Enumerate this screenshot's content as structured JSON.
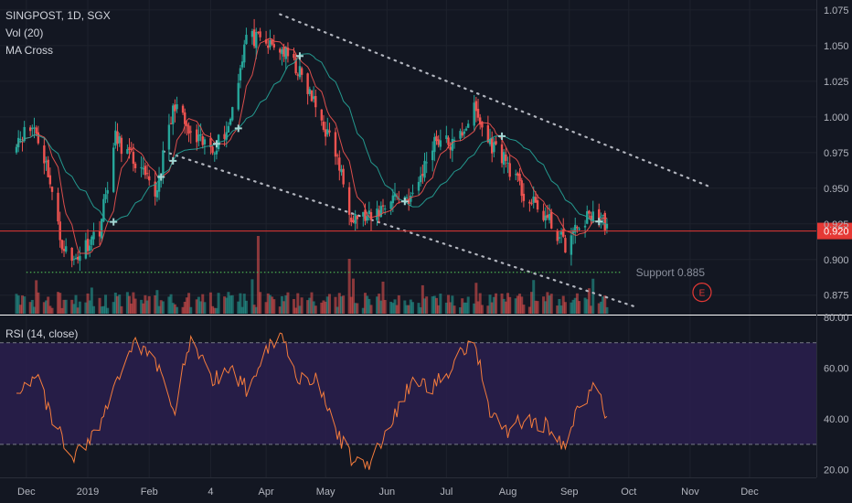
{
  "header": {
    "symbol_line": "SINGPOST, 1D, SGX",
    "indicator_vol": "Vol (20)",
    "indicator_ma": "MA Cross"
  },
  "rsi_panel": {
    "title": "RSI (14, close)"
  },
  "colors": {
    "background": "#131722",
    "grid": "#1e222d",
    "up": "#26a69a",
    "down": "#ef5350",
    "ma_fast": "#ef5350",
    "ma_slow": "#26a69a",
    "trendline": "#b2b5be",
    "support": "#4caf50",
    "price_line": "#e53935",
    "rsi_line": "#f57c3c",
    "rsi_band": "#2a1f4e",
    "earnings": "#e53935"
  },
  "icons": {
    "earnings_marker": "earnings-circle-icon"
  },
  "annotations": {
    "current_price": "0.920",
    "support_label": "Support 0.885",
    "earnings_marker_label": "E"
  },
  "chart_data": [
    {
      "type": "candlestick",
      "title": "SINGPOST, 1D, SGX",
      "y_axis": {
        "ticks": [
          "0.875",
          "0.900",
          "0.925",
          "0.950",
          "0.975",
          "1.000",
          "1.025",
          "1.050",
          "1.075"
        ],
        "range": [
          0.862,
          1.082
        ]
      },
      "x_axis": {
        "ticks": [
          "Dec",
          "2019",
          "Feb",
          "4",
          "Apr",
          "May",
          "Jun",
          "Jul",
          "Aug",
          "Sep",
          "Oct",
          "Nov",
          "Dec"
        ]
      },
      "price_path": {
        "x": [
          "2018-11-26",
          "2018-12-05",
          "2018-12-12",
          "2018-12-18",
          "2018-12-24",
          "2019-01-07",
          "2019-01-15",
          "2019-01-25",
          "2019-02-04",
          "2019-02-14",
          "2019-02-22",
          "2019-03-05",
          "2019-03-13",
          "2019-03-22",
          "2019-04-02",
          "2019-04-09",
          "2019-04-17",
          "2019-04-26",
          "2019-05-06",
          "2019-05-14",
          "2019-05-24",
          "2019-06-04",
          "2019-06-14",
          "2019-06-25",
          "2019-07-05",
          "2019-07-15",
          "2019-07-22",
          "2019-07-30",
          "2019-08-09",
          "2019-08-20",
          "2019-08-30",
          "2019-09-05",
          "2019-09-13",
          "2019-09-20"
        ],
        "close": [
          0.985,
          0.993,
          0.962,
          0.915,
          0.898,
          0.922,
          0.985,
          0.968,
          0.945,
          1.01,
          0.985,
          0.978,
          0.993,
          1.057,
          1.05,
          1.047,
          1.033,
          1.007,
          0.975,
          0.932,
          0.928,
          0.945,
          0.943,
          0.985,
          0.98,
          1.005,
          0.983,
          0.972,
          0.945,
          0.93,
          0.91,
          0.922,
          0.933,
          0.925
        ]
      },
      "approx_range": {
        "high": 1.072,
        "low": 0.897
      },
      "moving_averages": [
        {
          "name": "MA fast",
          "color": "#ef5350"
        },
        {
          "name": "MA slow",
          "color": "#26a69a"
        }
      ],
      "annotations": [
        "0.920",
        "Support 0.885",
        "E"
      ]
    },
    {
      "type": "line",
      "title": "RSI (14, close)",
      "y_axis": {
        "ticks": [
          "20.00",
          "40.00",
          "60.00",
          "80.00"
        ],
        "range": [
          17,
          80
        ]
      },
      "band": [
        30,
        70
      ],
      "series": [
        {
          "x": [
            "2018-11-26",
            "2018-12-05",
            "2018-12-14",
            "2018-12-24",
            "2019-01-07",
            "2019-01-15",
            "2019-01-24",
            "2019-02-04",
            "2019-02-14",
            "2019-02-22",
            "2019-03-05",
            "2019-03-13",
            "2019-03-22",
            "2019-04-02",
            "2019-04-09",
            "2019-04-17",
            "2019-04-26",
            "2019-05-06",
            "2019-05-14",
            "2019-05-24",
            "2019-06-04",
            "2019-06-14",
            "2019-06-25",
            "2019-07-05",
            "2019-07-15",
            "2019-07-22",
            "2019-07-30",
            "2019-08-09",
            "2019-08-20",
            "2019-08-30",
            "2019-09-05",
            "2019-09-13",
            "2019-09-20"
          ],
          "values": [
            50,
            58,
            40,
            24,
            37,
            54,
            71,
            62,
            45,
            72,
            55,
            60,
            52,
            69,
            73,
            57,
            55,
            36,
            24,
            23,
            40,
            55,
            53,
            62,
            73,
            45,
            35,
            40,
            38,
            28,
            43,
            53,
            41
          ]
        }
      ]
    }
  ]
}
